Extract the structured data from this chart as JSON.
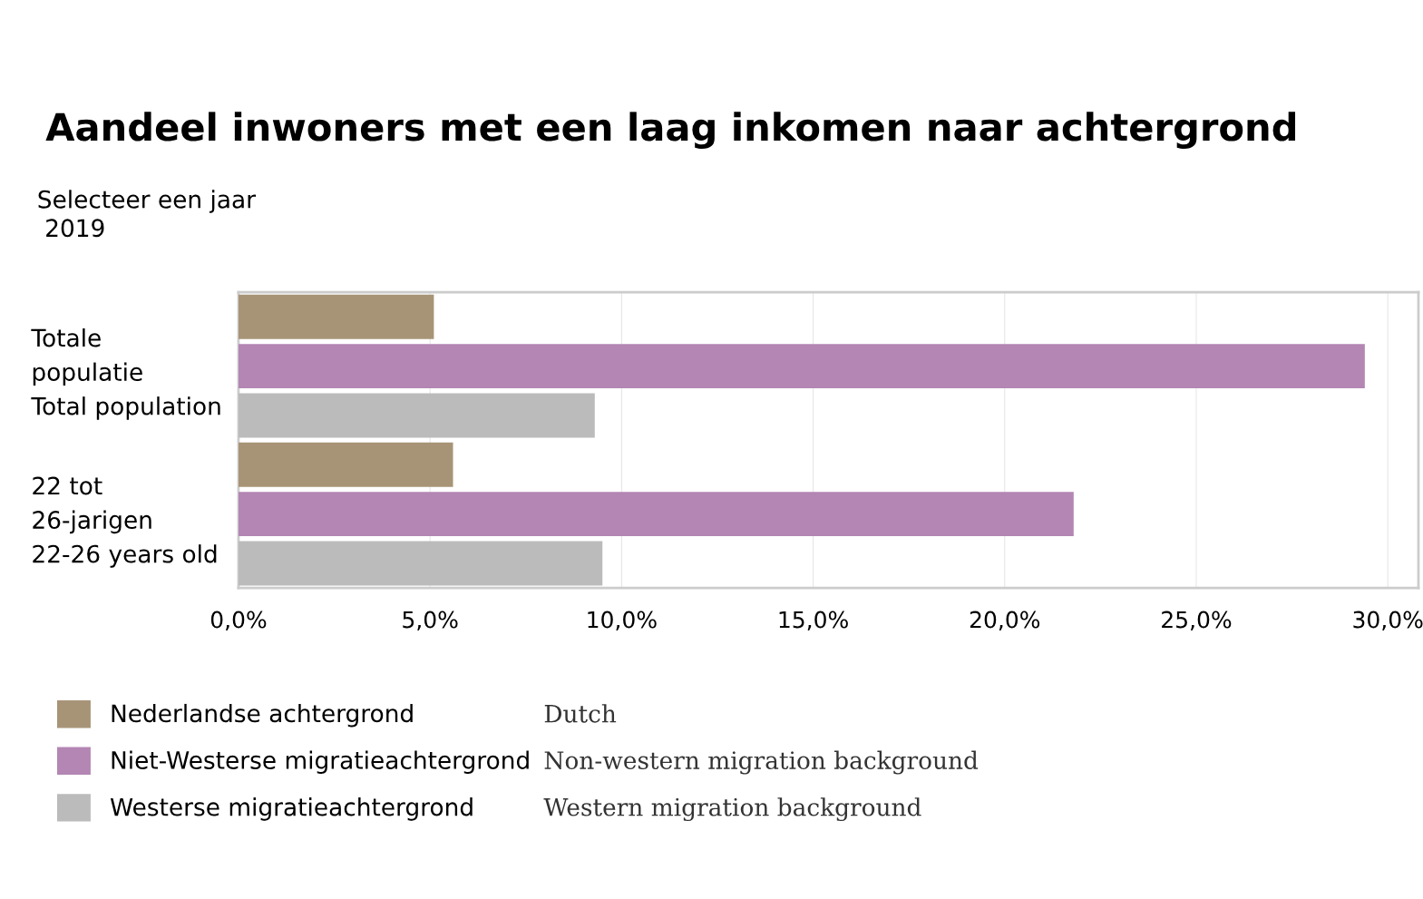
{
  "chart_data": {
    "type": "bar",
    "orientation": "horizontal",
    "title": "Aandeel inwoners met een laag inkomen naar achtergrond",
    "subtitle": "Selecteer een jaar\n 2019",
    "categories": [
      "Totale\npopulatie\nTotal population",
      "22 tot\n26-jarigen\n22-26 years old"
    ],
    "series": [
      {
        "name": "Nederlandse achtergrond",
        "color": "#a79477",
        "values": [
          5.1,
          5.6
        ]
      },
      {
        "name": "Niet-Westerse migratieachtergrond",
        "color": "#b386b3",
        "values": [
          29.4,
          21.8
        ]
      },
      {
        "name": "Westerse migratieachtergrond",
        "color": "#bbbbbb",
        "values": [
          9.3,
          9.5
        ]
      }
    ],
    "xlim": [
      0,
      30.8
    ],
    "xticks": [
      {
        "value": 0,
        "label": "0,0%"
      },
      {
        "value": 5,
        "label": "5,0%"
      },
      {
        "value": 10,
        "label": "10,0%"
      },
      {
        "value": 15,
        "label": "15,0%"
      },
      {
        "value": 20,
        "label": "20,0%"
      },
      {
        "value": 25,
        "label": "25,0%"
      },
      {
        "value": 30,
        "label": "30,0%"
      }
    ],
    "grid": "x",
    "legend": "bottom",
    "annotations": [
      "Dutch",
      "Non-western migration background",
      "Western migration background"
    ]
  }
}
